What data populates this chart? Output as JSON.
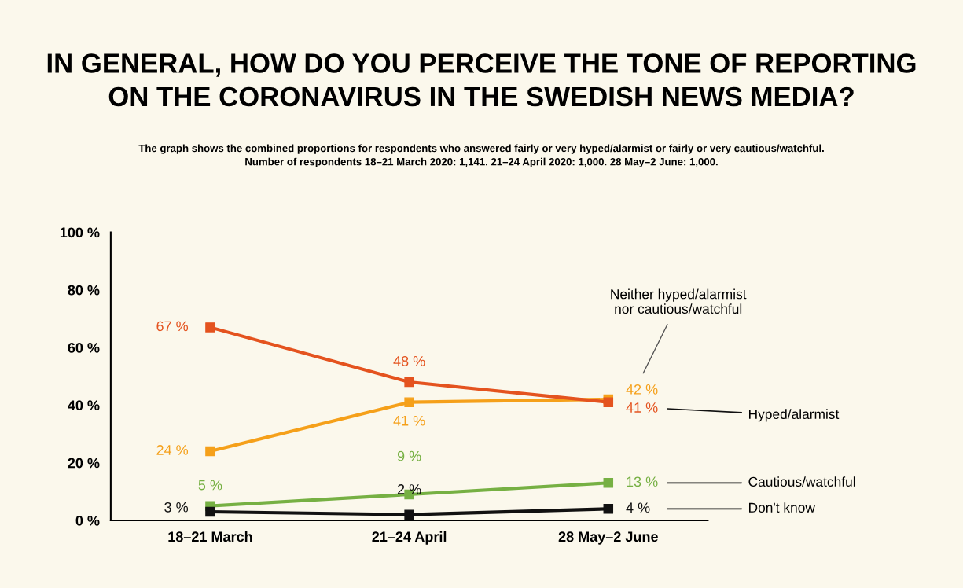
{
  "chart_data": {
    "type": "line",
    "title": "IN GENERAL, HOW DO YOU PERCEIVE THE TONE OF REPORTING\nON THE CORONAVIRUS IN THE SWEDISH NEWS MEDIA?",
    "subtitle": "The graph shows the combined proportions for respondents who answered fairly or very hyped/alarmist or fairly or very cautious/watchful.\nNumber of respondents 18–21 March 2020: 1,141. 21–24 April 2020: 1,000. 28 May–2 June: 1,000.",
    "categories": [
      "18–21 March",
      "21–24 April",
      "28 May–2 June"
    ],
    "series": [
      {
        "name": "Hyped/alarmist",
        "color": "#e4531f",
        "values": [
          67,
          48,
          41
        ],
        "value_labels": [
          "67 %",
          "48 %",
          "41 %"
        ]
      },
      {
        "name": "Neither hyped/alarmist\nnor cautious/watchful",
        "color": "#f5a01a",
        "values": [
          24,
          41,
          42
        ],
        "value_labels": [
          "24 %",
          "41 %",
          "42 %"
        ]
      },
      {
        "name": "Cautious/watchful",
        "color": "#76b043",
        "values": [
          5,
          9,
          13
        ],
        "value_labels": [
          "5 %",
          "9 %",
          "13 %"
        ]
      },
      {
        "name": "Don't know",
        "color": "#111111",
        "values": [
          3,
          2,
          4
        ],
        "value_labels": [
          "3 %",
          "2 %",
          "4 %"
        ]
      }
    ],
    "ylim": [
      0,
      100
    ],
    "yticks": [
      {
        "value": 0,
        "label": "0 %"
      },
      {
        "value": 20,
        "label": "20 %"
      },
      {
        "value": 40,
        "label": "40 %"
      },
      {
        "value": 60,
        "label": "60 %"
      },
      {
        "value": 80,
        "label": "80 %"
      },
      {
        "value": 100,
        "label": "100 %"
      }
    ],
    "marker": "square",
    "line_style": "solid",
    "grid": false,
    "legend": false
  }
}
